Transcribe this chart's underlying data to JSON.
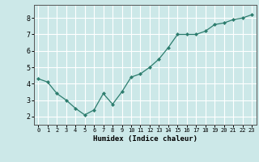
{
  "x": [
    0,
    1,
    2,
    3,
    4,
    5,
    6,
    7,
    8,
    9,
    10,
    11,
    12,
    13,
    14,
    15,
    16,
    17,
    18,
    19,
    20,
    21,
    22,
    23
  ],
  "y": [
    4.3,
    4.1,
    3.4,
    3.0,
    2.5,
    2.1,
    2.4,
    3.4,
    2.75,
    3.5,
    4.4,
    4.6,
    5.0,
    5.5,
    6.2,
    7.0,
    7.0,
    7.0,
    7.2,
    7.6,
    7.7,
    7.9,
    8.0,
    8.2
  ],
  "xlabel": "Humidex (Indice chaleur)",
  "ylim": [
    1.5,
    8.8
  ],
  "xlim": [
    -0.5,
    23.5
  ],
  "yticks": [
    2,
    3,
    4,
    5,
    6,
    7,
    8
  ],
  "xticks": [
    0,
    1,
    2,
    3,
    4,
    5,
    6,
    7,
    8,
    9,
    10,
    11,
    12,
    13,
    14,
    15,
    16,
    17,
    18,
    19,
    20,
    21,
    22,
    23
  ],
  "line_color": "#2d7d6e",
  "marker_color": "#2d7d6e",
  "bg_color": "#cce8e8",
  "grid_color": "#ffffff"
}
